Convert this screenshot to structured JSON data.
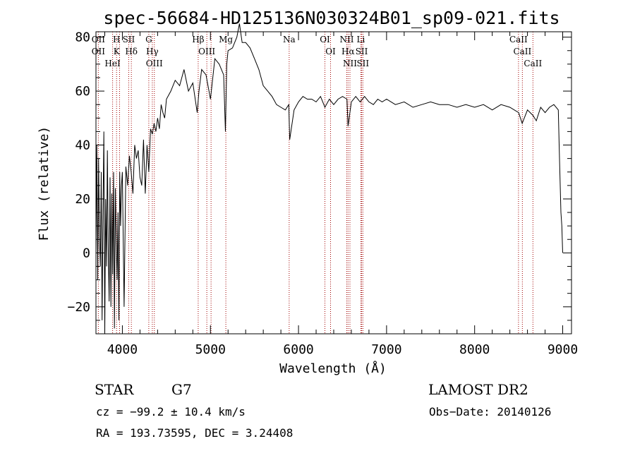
{
  "colors": {
    "spectrum": "#000000",
    "line_marker": "#a00000",
    "axes": "#000000"
  },
  "chart_data": {
    "type": "line",
    "title": "spec-56684-HD125136N030324B01_sp09-021.fits",
    "xlabel": "Wavelength (Å)",
    "ylabel": "Flux (relative)",
    "xlim": [
      3700,
      9100
    ],
    "ylim": [
      -30,
      82
    ],
    "xticks": [
      4000,
      5000,
      6000,
      7000,
      8000,
      9000
    ],
    "yticks": [
      -20,
      0,
      20,
      40,
      60,
      80
    ],
    "xtick_labels": [
      "4000",
      "5000",
      "6000",
      "7000",
      "8000",
      "9000"
    ],
    "ytick_labels": [
      "−20",
      "0",
      "20",
      "40",
      "60",
      "80"
    ],
    "grid": false,
    "series": [
      {
        "name": "",
        "x": [
          3700,
          3710,
          3720,
          3730,
          3740,
          3750,
          3760,
          3770,
          3780,
          3790,
          3800,
          3810,
          3820,
          3830,
          3840,
          3850,
          3860,
          3870,
          3880,
          3890,
          3900,
          3910,
          3920,
          3930,
          3940,
          3950,
          3960,
          3970,
          3980,
          3990,
          4000,
          4020,
          4040,
          4060,
          4080,
          4100,
          4120,
          4140,
          4160,
          4180,
          4200,
          4220,
          4240,
          4260,
          4280,
          4300,
          4320,
          4340,
          4360,
          4380,
          4400,
          4420,
          4440,
          4460,
          4480,
          4500,
          4550,
          4600,
          4650,
          4700,
          4750,
          4800,
          4850,
          4870,
          4900,
          4950,
          5000,
          5050,
          5100,
          5150,
          5170,
          5185,
          5200,
          5250,
          5300,
          5330,
          5360,
          5400,
          5450,
          5500,
          5550,
          5600,
          5650,
          5700,
          5750,
          5800,
          5850,
          5890,
          5900,
          5950,
          6000,
          6050,
          6100,
          6150,
          6200,
          6250,
          6300,
          6350,
          6400,
          6450,
          6500,
          6550,
          6563,
          6600,
          6650,
          6700,
          6750,
          6800,
          6850,
          6900,
          6950,
          7000,
          7100,
          7200,
          7300,
          7400,
          7500,
          7600,
          7700,
          7800,
          7900,
          8000,
          8100,
          8200,
          8300,
          8400,
          8500,
          8540,
          8600,
          8662,
          8700,
          8750,
          8800,
          8850,
          8900,
          8950,
          8960,
          8980,
          8990,
          9000
        ],
        "values": [
          0,
          40,
          -10,
          35,
          5,
          -5,
          30,
          -25,
          15,
          45,
          -30,
          20,
          -5,
          38,
          0,
          -18,
          28,
          -20,
          22,
          -8,
          30,
          -28,
          24,
          5,
          -10,
          15,
          -25,
          30,
          10,
          25,
          30,
          -20,
          32,
          25,
          36,
          30,
          22,
          40,
          35,
          38,
          28,
          25,
          42,
          22,
          40,
          30,
          46,
          44,
          48,
          45,
          50,
          46,
          55,
          52,
          50,
          57,
          60,
          64,
          62,
          68,
          60,
          63,
          52,
          60,
          68,
          66,
          57,
          72,
          70,
          66,
          45,
          70,
          75,
          76,
          80,
          85,
          78,
          78,
          76,
          72,
          68,
          62,
          60,
          58,
          55,
          54,
          53,
          55,
          42,
          53,
          56,
          58,
          57,
          57,
          56,
          58,
          54,
          57,
          55,
          57,
          58,
          57,
          47,
          56,
          58,
          56,
          58,
          56,
          55,
          57,
          56,
          57,
          55,
          56,
          54,
          55,
          56,
          55,
          55,
          54,
          55,
          54,
          55,
          53,
          55,
          54,
          52,
          48,
          53,
          51,
          49,
          54,
          52,
          54,
          55,
          53,
          40,
          15,
          10,
          0
        ]
      }
    ],
    "line_markers": [
      {
        "wavelength": 3727,
        "labels": [
          "OII",
          "OII"
        ]
      },
      {
        "wavelength": 3889,
        "labels": [
          "HeI"
        ]
      },
      {
        "wavelength": 3934,
        "labels": [
          "H",
          "K"
        ]
      },
      {
        "wavelength": 3968,
        "labels": []
      },
      {
        "wavelength": 4072,
        "labels": [
          "SII"
        ]
      },
      {
        "wavelength": 4102,
        "labels": [
          "Hδ"
        ]
      },
      {
        "wavelength": 4300,
        "labels": [
          "G"
        ]
      },
      {
        "wavelength": 4340,
        "labels": [
          "Hγ"
        ]
      },
      {
        "wavelength": 4363,
        "labels": [
          "OIII"
        ]
      },
      {
        "wavelength": 4861,
        "labels": [
          "Hβ"
        ]
      },
      {
        "wavelength": 4959,
        "labels": [
          "OIII"
        ]
      },
      {
        "wavelength": 5007,
        "labels": []
      },
      {
        "wavelength": 5175,
        "labels": [
          "Mg"
        ]
      },
      {
        "wavelength": 5894,
        "labels": [
          "Na"
        ]
      },
      {
        "wavelength": 6300,
        "labels": [
          "OI"
        ]
      },
      {
        "wavelength": 6364,
        "labels": [
          "OI"
        ]
      },
      {
        "wavelength": 6548,
        "labels": [
          "NII"
        ]
      },
      {
        "wavelength": 6563,
        "labels": [
          "Hα"
        ]
      },
      {
        "wavelength": 6584,
        "labels": [
          "NII"
        ]
      },
      {
        "wavelength": 6708,
        "labels": [
          "Li"
        ]
      },
      {
        "wavelength": 6717,
        "labels": [
          "SII"
        ]
      },
      {
        "wavelength": 6731,
        "labels": [
          "SII"
        ]
      },
      {
        "wavelength": 8498,
        "labels": [
          "CaII"
        ]
      },
      {
        "wavelength": 8542,
        "labels": [
          "CaII"
        ]
      },
      {
        "wavelength": 8662,
        "labels": [
          "CaII"
        ]
      }
    ]
  },
  "info": {
    "object_class": "STAR",
    "subclass": "G7",
    "cz": "cz = −99.2 ± 10.4 km/s",
    "coords": "RA = 193.73595, DEC =   3.24408",
    "survey": "LAMOST DR2",
    "obs_date": "Obs−Date: 20140126"
  }
}
